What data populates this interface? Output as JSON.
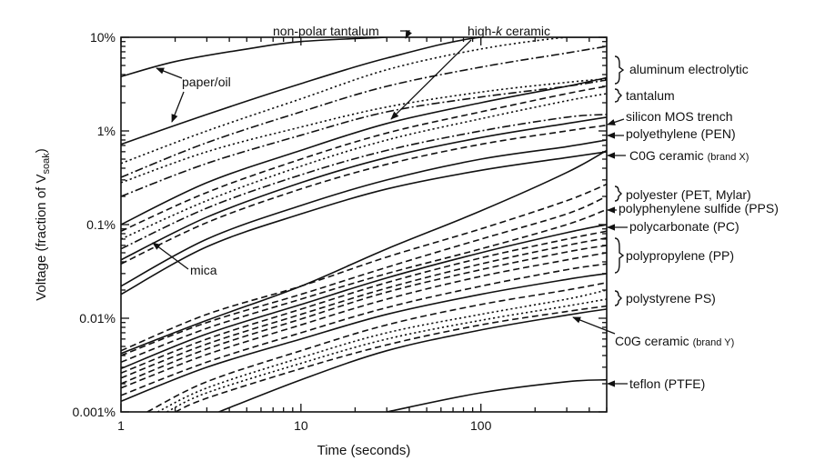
{
  "chart_data": {
    "type": "line",
    "title": "",
    "xlabel": "Time (seconds)",
    "ylabel": "Voltage (fraction of V",
    "ylabel_sub": "soak",
    "ylabel_close": ")",
    "x_scale": "log",
    "y_scale": "log",
    "xlim": [
      1,
      500
    ],
    "ylim": [
      0.001,
      10
    ],
    "x_ticks": [
      {
        "value": 1,
        "label": "1"
      },
      {
        "value": 10,
        "label": "10"
      },
      {
        "value": 100,
        "label": "100"
      }
    ],
    "y_ticks": [
      {
        "value": 10,
        "label": "10%"
      },
      {
        "value": 1,
        "label": "1%"
      },
      {
        "value": 0.1,
        "label": "0.1%"
      },
      {
        "value": 0.01,
        "label": "0.01%"
      },
      {
        "value": 0.001,
        "label": "0.001%"
      }
    ],
    "grid": false,
    "series": [
      {
        "style": "solid",
        "x": [
          1,
          2,
          5,
          10,
          30
        ],
        "y": [
          3.8,
          5.5,
          7.5,
          9,
          10
        ]
      },
      {
        "style": "solid",
        "x": [
          1,
          3,
          10,
          30,
          100,
          300,
          500
        ],
        "y": [
          0.72,
          1.5,
          3.2,
          6,
          10,
          10,
          10
        ]
      },
      {
        "style": "dotted",
        "x": [
          1,
          3,
          10,
          30,
          100,
          300,
          500
        ],
        "y": [
          0.45,
          1.0,
          2.2,
          4.5,
          7.5,
          10,
          10
        ]
      },
      {
        "style": "dashdot",
        "x": [
          1,
          3,
          10,
          30,
          100,
          300,
          500
        ],
        "y": [
          0.32,
          0.75,
          1.6,
          3.0,
          4.8,
          6.8,
          8.0
        ]
      },
      {
        "style": "dotted",
        "x": [
          1,
          3,
          10,
          30,
          100,
          300,
          500
        ],
        "y": [
          0.28,
          0.6,
          1.1,
          1.8,
          2.6,
          3.3,
          3.6
        ]
      },
      {
        "style": "dashdot",
        "x": [
          1,
          3,
          10,
          30,
          100,
          300,
          500
        ],
        "y": [
          0.2,
          0.45,
          0.9,
          1.6,
          2.3,
          3.0,
          3.5
        ]
      },
      {
        "style": "solid",
        "x": [
          1,
          3,
          10,
          30,
          100,
          300,
          500
        ],
        "y": [
          0.1,
          0.28,
          0.62,
          1.2,
          2.0,
          3.0,
          3.7
        ]
      },
      {
        "style": "dashed",
        "x": [
          1,
          3,
          10,
          30,
          100,
          300,
          500
        ],
        "y": [
          0.085,
          0.22,
          0.5,
          0.95,
          1.6,
          2.5,
          3.0
        ]
      },
      {
        "style": "dotted",
        "x": [
          1,
          3,
          10,
          30,
          100,
          300,
          500
        ],
        "y": [
          0.07,
          0.18,
          0.42,
          0.8,
          1.35,
          2.1,
          2.5
        ]
      },
      {
        "style": "dashdot",
        "x": [
          1,
          3,
          10,
          30,
          100,
          300,
          500
        ],
        "y": [
          0.055,
          0.15,
          0.34,
          0.62,
          1.0,
          1.4,
          1.5
        ]
      },
      {
        "style": "solid",
        "x": [
          1,
          3,
          10,
          30,
          100,
          300,
          500
        ],
        "y": [
          0.042,
          0.12,
          0.28,
          0.52,
          0.85,
          1.2,
          1.4
        ]
      },
      {
        "style": "dashed",
        "x": [
          1,
          3,
          10,
          30,
          100,
          300,
          500
        ],
        "y": [
          0.038,
          0.105,
          0.24,
          0.44,
          0.72,
          1.0,
          1.15
        ]
      },
      {
        "style": "solid",
        "x": [
          1,
          3,
          10,
          30,
          100,
          300,
          500
        ],
        "y": [
          0.022,
          0.07,
          0.16,
          0.3,
          0.5,
          0.68,
          0.8
        ]
      },
      {
        "style": "solid",
        "x": [
          1,
          3,
          10,
          30,
          100,
          300,
          500
        ],
        "y": [
          0.018,
          0.058,
          0.13,
          0.24,
          0.38,
          0.52,
          0.6
        ]
      },
      {
        "style": "solid",
        "x": [
          1,
          3,
          10,
          30,
          100,
          300,
          500
        ],
        "y": [
          0.0042,
          0.0095,
          0.022,
          0.055,
          0.14,
          0.36,
          0.62
        ]
      },
      {
        "style": "dashed",
        "x": [
          1,
          3,
          10,
          30,
          100,
          300,
          500
        ],
        "y": [
          0.0045,
          0.011,
          0.022,
          0.045,
          0.09,
          0.18,
          0.27
        ]
      },
      {
        "style": "dashed",
        "x": [
          1,
          3,
          10,
          30,
          100,
          300,
          500
        ],
        "y": [
          0.004,
          0.009,
          0.018,
          0.035,
          0.07,
          0.13,
          0.2
        ]
      },
      {
        "style": "dashed",
        "x": [
          1,
          3,
          10,
          30,
          100,
          300,
          500
        ],
        "y": [
          0.0034,
          0.0078,
          0.016,
          0.03,
          0.055,
          0.1,
          0.145
        ]
      },
      {
        "style": "solid",
        "x": [
          1,
          3,
          10,
          30,
          100,
          300,
          500
        ],
        "y": [
          0.0029,
          0.0068,
          0.014,
          0.027,
          0.05,
          0.082,
          0.1
        ]
      },
      {
        "style": "dashed",
        "x": [
          1,
          3,
          10,
          30,
          100,
          300,
          500
        ],
        "y": [
          0.0026,
          0.006,
          0.0125,
          0.024,
          0.044,
          0.07,
          0.085
        ]
      },
      {
        "style": "dashed",
        "x": [
          1,
          3,
          10,
          30,
          100,
          300,
          500
        ],
        "y": [
          0.0023,
          0.0053,
          0.011,
          0.021,
          0.038,
          0.06,
          0.072
        ]
      },
      {
        "style": "dashed",
        "x": [
          1,
          3,
          10,
          30,
          100,
          300,
          500
        ],
        "y": [
          0.002,
          0.0047,
          0.0098,
          0.019,
          0.033,
          0.051,
          0.06
        ]
      },
      {
        "style": "dashed",
        "x": [
          1,
          3,
          10,
          30,
          100,
          300,
          500
        ],
        "y": [
          0.0018,
          0.0041,
          0.0085,
          0.016,
          0.028,
          0.042,
          0.05
        ]
      },
      {
        "style": "dashed",
        "x": [
          1,
          3,
          10,
          30,
          100,
          300,
          500
        ],
        "y": [
          0.0015,
          0.0034,
          0.007,
          0.013,
          0.022,
          0.033,
          0.038
        ]
      },
      {
        "style": "solid",
        "x": [
          1,
          3,
          10,
          30,
          100,
          300,
          500
        ],
        "y": [
          0.0013,
          0.003,
          0.006,
          0.011,
          0.018,
          0.026,
          0.03
        ]
      },
      {
        "style": "dashed",
        "x": [
          1.4,
          3,
          10,
          30,
          100,
          300,
          500
        ],
        "y": [
          0.001,
          0.0021,
          0.0045,
          0.0085,
          0.014,
          0.02,
          0.024
        ]
      },
      {
        "style": "dotted",
        "x": [
          1.6,
          3,
          10,
          30,
          100,
          300,
          500
        ],
        "y": [
          0.001,
          0.0018,
          0.0038,
          0.007,
          0.011,
          0.016,
          0.02
        ]
      },
      {
        "style": "dotted",
        "x": [
          1.8,
          3,
          10,
          30,
          100,
          300,
          500
        ],
        "y": [
          0.001,
          0.0016,
          0.0033,
          0.006,
          0.0095,
          0.0135,
          0.016
        ]
      },
      {
        "style": "dashed",
        "x": [
          2.0,
          3,
          10,
          30,
          100,
          300,
          500
        ],
        "y": [
          0.001,
          0.0014,
          0.0029,
          0.0052,
          0.0085,
          0.0118,
          0.0135
        ]
      },
      {
        "style": "solid",
        "x": [
          3.5,
          10,
          30,
          100,
          300,
          500
        ],
        "y": [
          0.001,
          0.0022,
          0.0045,
          0.0075,
          0.0108,
          0.0125
        ]
      },
      {
        "style": "solid",
        "x": [
          30,
          100,
          300,
          500
        ],
        "y": [
          0.001,
          0.0016,
          0.0021,
          0.0022
        ]
      }
    ],
    "annotations": [
      {
        "id": "non-polar-tantalum",
        "text": "non-polar tantalum"
      },
      {
        "id": "high-k-ceramic",
        "text_pre": "high-",
        "text_italic": "k",
        "text_post": " ceramic"
      },
      {
        "id": "paper-oil",
        "text": "paper/oil"
      },
      {
        "id": "mica",
        "text": "mica"
      }
    ],
    "right_labels": [
      {
        "text": "aluminum electrolytic",
        "small": ""
      },
      {
        "text": "tantalum",
        "small": ""
      },
      {
        "text": "silicon MOS trench",
        "small": ""
      },
      {
        "text": "polyethylene (PEN)",
        "small": ""
      },
      {
        "text": "C0G ceramic ",
        "small": "(brand X)"
      },
      {
        "text": "polyester (PET, Mylar)",
        "small": ""
      },
      {
        "text": "polyphenylene sulfide (PPS)",
        "small": ""
      },
      {
        "text": "polycarbonate (PC)",
        "small": ""
      },
      {
        "text": "polypropylene (PP)",
        "small": ""
      },
      {
        "text": "polystyrene PS)",
        "small": ""
      },
      {
        "text": "C0G ceramic ",
        "small": "(brand Y)"
      },
      {
        "text": "teflon (PTFE)",
        "small": ""
      }
    ]
  }
}
